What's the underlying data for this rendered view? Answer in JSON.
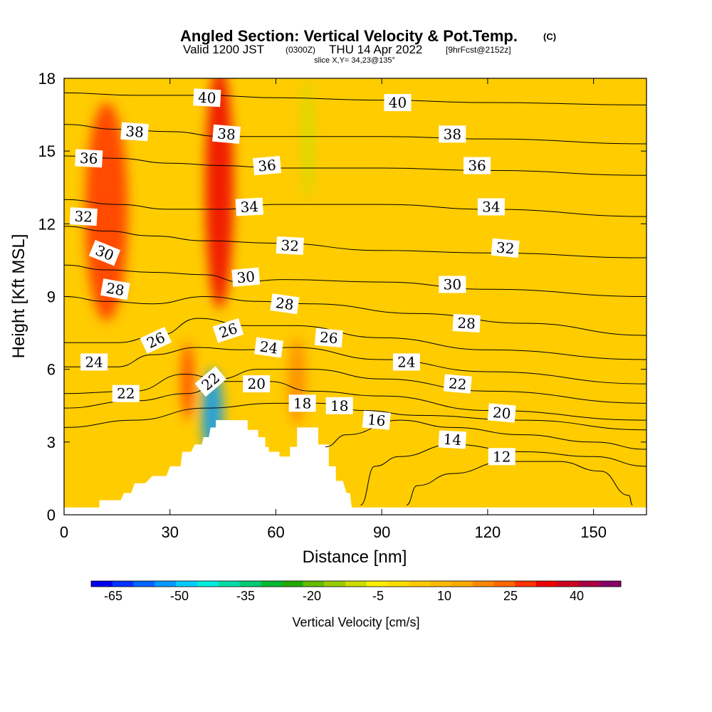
{
  "header": {
    "title": "Angled Section: Vertical Velocity & Pot.Temp.",
    "title_units": "(C)",
    "subtitle_valid": "Valid 1200 JST",
    "subtitle_utc": "(0300Z)",
    "subtitle_date": "THU 14 Apr 2022",
    "subtitle_fcst": "[9hrFcst@2152z]",
    "slice": "slice X,Y= 34,23@135°"
  },
  "chart_data": {
    "type": "heatmap",
    "xlabel": "Distance [nm]",
    "ylabel": "Height [Kft MSL]",
    "xlim": [
      0,
      165
    ],
    "ylim": [
      0,
      18
    ],
    "xticks": [
      "0",
      "30",
      "60",
      "90",
      "120",
      "150"
    ],
    "yticks": [
      "0",
      "3",
      "6",
      "9",
      "12",
      "15",
      "18"
    ],
    "colorbar": {
      "label": "Vertical Velocity [cm/s]",
      "ticks": [
        "-65",
        "-50",
        "-35",
        "-20",
        "-5",
        "10",
        "25",
        "40"
      ],
      "min": -70,
      "max": 50,
      "step": 5,
      "colors": [
        "#0000ee",
        "#0033ff",
        "#0066ff",
        "#0099ff",
        "#00ccff",
        "#00eedd",
        "#00ddaa",
        "#00cc77",
        "#00bb33",
        "#22aa00",
        "#66bb00",
        "#99cc00",
        "#ccdd00",
        "#ffee00",
        "#ffdd00",
        "#ffcc00",
        "#ffbb00",
        "#ffaa00",
        "#ff8800",
        "#ff6600",
        "#ff3300",
        "#ee0000",
        "#cc0022",
        "#aa0044",
        "#880066"
      ]
    },
    "velocity_features": [
      {
        "x": 12,
        "y": 12.5,
        "rx": 6,
        "ry": 4.5,
        "value": 30
      },
      {
        "x": 44,
        "y": 13.5,
        "rx": 4,
        "ry": 5,
        "value": 38
      },
      {
        "x": 35,
        "y": 5.5,
        "rx": 1.6,
        "ry": 1.6,
        "value": 30
      },
      {
        "x": 42,
        "y": 4.2,
        "rx": 3,
        "ry": 1.8,
        "value": -55
      },
      {
        "x": 66,
        "y": 5.5,
        "rx": 2.5,
        "ry": 1.8,
        "value": 20
      },
      {
        "x": 69,
        "y": 15.5,
        "rx": 1.5,
        "ry": 2.5,
        "value": -10
      }
    ],
    "terrain": [
      [
        0,
        0.3
      ],
      [
        10,
        0.3
      ],
      [
        10,
        0.6
      ],
      [
        16,
        0.6
      ],
      [
        17,
        0.9
      ],
      [
        19,
        0.9
      ],
      [
        20,
        1.3
      ],
      [
        23,
        1.3
      ],
      [
        25,
        1.6
      ],
      [
        29,
        1.6
      ],
      [
        30,
        2.0
      ],
      [
        33,
        2.0
      ],
      [
        33.5,
        2.6
      ],
      [
        36,
        2.6
      ],
      [
        37,
        2.9
      ],
      [
        39,
        2.9
      ],
      [
        39.5,
        3.2
      ],
      [
        41,
        3.2
      ],
      [
        41.5,
        3.6
      ],
      [
        43,
        3.6
      ],
      [
        43,
        3.9
      ],
      [
        52,
        3.9
      ],
      [
        52,
        3.5
      ],
      [
        55,
        3.5
      ],
      [
        55,
        3.2
      ],
      [
        57,
        3.2
      ],
      [
        57,
        2.8
      ],
      [
        58,
        2.8
      ],
      [
        58,
        2.6
      ],
      [
        61,
        2.6
      ],
      [
        61,
        2.4
      ],
      [
        64,
        2.4
      ],
      [
        64,
        2.8
      ],
      [
        66,
        2.8
      ],
      [
        66,
        3.6
      ],
      [
        72,
        3.6
      ],
      [
        72,
        2.9
      ],
      [
        75,
        2.9
      ],
      [
        75,
        2.0
      ],
      [
        77,
        2.0
      ],
      [
        77,
        1.4
      ],
      [
        79,
        1.4
      ],
      [
        80,
        0.9
      ],
      [
        81,
        0.9
      ],
      [
        81.5,
        0.3
      ],
      [
        165,
        0.3
      ]
    ],
    "isentropes": [
      {
        "theta": 12,
        "path": [
          [
            97,
            0.4
          ],
          [
            100,
            1.2
          ],
          [
            110,
            1.7
          ],
          [
            125,
            2.2
          ],
          [
            140,
            2.2
          ],
          [
            152,
            1.8
          ],
          [
            160,
            0.8
          ],
          [
            161,
            0.4
          ]
        ]
      },
      {
        "theta": 14,
        "path": [
          [
            84,
            0.4
          ],
          [
            88,
            2.0
          ],
          [
            95,
            2.4
          ],
          [
            110,
            2.9
          ],
          [
            130,
            2.6
          ],
          [
            150,
            2.4
          ],
          [
            165,
            2.0
          ]
        ]
      },
      {
        "theta": 16,
        "path": [
          [
            74,
            2.8
          ],
          [
            80,
            3.3
          ],
          [
            95,
            3.9
          ],
          [
            110,
            3.6
          ],
          [
            130,
            3.3
          ],
          [
            150,
            3.0
          ],
          [
            165,
            2.7
          ]
        ]
      },
      {
        "theta": 18,
        "path": [
          [
            0,
            3.6
          ],
          [
            20,
            3.9
          ],
          [
            40,
            4.4
          ],
          [
            60,
            4.6
          ],
          [
            72,
            4.6
          ],
          [
            85,
            4.3
          ],
          [
            100,
            4.1
          ],
          [
            130,
            3.9
          ],
          [
            165,
            3.5
          ]
        ]
      },
      {
        "theta": 20,
        "path": [
          [
            0,
            4.4
          ],
          [
            20,
            4.7
          ],
          [
            35,
            5.0
          ],
          [
            45,
            5.5
          ],
          [
            58,
            5.5
          ],
          [
            70,
            5.1
          ],
          [
            90,
            4.9
          ],
          [
            120,
            4.3
          ],
          [
            165,
            3.9
          ]
        ]
      },
      {
        "theta": 22,
        "path": [
          [
            0,
            5.0
          ],
          [
            20,
            5.1
          ],
          [
            34,
            5.8
          ],
          [
            44,
            5.6
          ],
          [
            55,
            6.0
          ],
          [
            70,
            6.0
          ],
          [
            90,
            5.6
          ],
          [
            120,
            5.1
          ],
          [
            165,
            4.6
          ]
        ]
      },
      {
        "theta": 24,
        "path": [
          [
            0,
            6.1
          ],
          [
            15,
            6.1
          ],
          [
            25,
            6.6
          ],
          [
            38,
            6.9
          ],
          [
            50,
            6.8
          ],
          [
            65,
            6.9
          ],
          [
            90,
            6.4
          ],
          [
            120,
            5.9
          ],
          [
            165,
            5.4
          ]
        ]
      },
      {
        "theta": 26,
        "path": [
          [
            0,
            7.1
          ],
          [
            15,
            7.1
          ],
          [
            27,
            7.4
          ],
          [
            38,
            8.1
          ],
          [
            52,
            7.8
          ],
          [
            65,
            7.8
          ],
          [
            90,
            7.3
          ],
          [
            120,
            6.8
          ],
          [
            165,
            6.4
          ]
        ]
      },
      {
        "theta": 28,
        "path": [
          [
            0,
            9.0
          ],
          [
            12,
            8.8
          ],
          [
            25,
            8.7
          ],
          [
            40,
            9.0
          ],
          [
            55,
            8.8
          ],
          [
            70,
            8.7
          ],
          [
            100,
            8.3
          ],
          [
            130,
            7.9
          ],
          [
            165,
            7.4
          ]
        ]
      },
      {
        "theta": 30,
        "path": [
          [
            0,
            10.3
          ],
          [
            12,
            10.1
          ],
          [
            25,
            10.0
          ],
          [
            40,
            9.9
          ],
          [
            50,
            9.6
          ],
          [
            62,
            9.7
          ],
          [
            90,
            9.6
          ],
          [
            120,
            9.3
          ],
          [
            165,
            9.0
          ]
        ]
      },
      {
        "theta": 32,
        "path": [
          [
            0,
            11.9
          ],
          [
            12,
            11.7
          ],
          [
            25,
            11.5
          ],
          [
            40,
            11.3
          ],
          [
            60,
            11.2
          ],
          [
            90,
            10.9
          ],
          [
            120,
            10.8
          ],
          [
            165,
            10.6
          ]
        ]
      },
      {
        "theta": 34,
        "path": [
          [
            0,
            13.0
          ],
          [
            15,
            12.8
          ],
          [
            30,
            12.6
          ],
          [
            45,
            12.6
          ],
          [
            60,
            12.8
          ],
          [
            90,
            12.8
          ],
          [
            120,
            12.6
          ],
          [
            165,
            12.3
          ]
        ]
      },
      {
        "theta": 36,
        "path": [
          [
            0,
            14.8
          ],
          [
            15,
            14.7
          ],
          [
            30,
            14.5
          ],
          [
            45,
            14.4
          ],
          [
            60,
            14.3
          ],
          [
            90,
            14.3
          ],
          [
            120,
            14.2
          ],
          [
            165,
            14.0
          ]
        ]
      },
      {
        "theta": 38,
        "path": [
          [
            0,
            16.1
          ],
          [
            15,
            15.9
          ],
          [
            30,
            15.8
          ],
          [
            45,
            15.6
          ],
          [
            60,
            15.6
          ],
          [
            90,
            15.6
          ],
          [
            120,
            15.5
          ],
          [
            165,
            15.3
          ]
        ]
      },
      {
        "theta": 40,
        "path": [
          [
            0,
            17.4
          ],
          [
            20,
            17.3
          ],
          [
            40,
            17.3
          ],
          [
            60,
            17.2
          ],
          [
            90,
            17.1
          ],
          [
            120,
            17.0
          ],
          [
            165,
            16.9
          ]
        ]
      }
    ],
    "isentrope_labels": [
      {
        "text": "40",
        "x": 40.5,
        "y": 17.2,
        "rot": 3
      },
      {
        "text": "38",
        "x": 20,
        "y": 15.8,
        "rot": 4
      },
      {
        "text": "36",
        "x": 7,
        "y": 14.7,
        "rot": 3
      },
      {
        "text": "32",
        "x": 5.5,
        "y": 12.3,
        "rot": 3
      },
      {
        "text": "30",
        "x": 11.5,
        "y": 10.8,
        "rot": 22
      },
      {
        "text": "28",
        "x": 14.5,
        "y": 9.3,
        "rot": 10
      },
      {
        "text": "24",
        "x": 8.5,
        "y": 6.3,
        "rot": 0
      },
      {
        "text": "22",
        "x": 17.5,
        "y": 5.0,
        "rot": 0
      },
      {
        "text": "26",
        "x": 26,
        "y": 7.2,
        "rot": -25
      },
      {
        "text": "38",
        "x": 46,
        "y": 15.7,
        "rot": 5
      },
      {
        "text": "36",
        "x": 57.5,
        "y": 14.4,
        "rot": -5
      },
      {
        "text": "34",
        "x": 52.5,
        "y": 12.7,
        "rot": -3
      },
      {
        "text": "32",
        "x": 64,
        "y": 11.1,
        "rot": 3
      },
      {
        "text": "30",
        "x": 51.5,
        "y": 9.8,
        "rot": -5
      },
      {
        "text": "28",
        "x": 62.5,
        "y": 8.7,
        "rot": 8
      },
      {
        "text": "26",
        "x": 46.5,
        "y": 7.6,
        "rot": -18
      },
      {
        "text": "24",
        "x": 58,
        "y": 6.9,
        "rot": 8
      },
      {
        "text": "22",
        "x": 41.5,
        "y": 5.5,
        "rot": -40
      },
      {
        "text": "20",
        "x": 54.5,
        "y": 5.4,
        "rot": 0
      },
      {
        "text": "18",
        "x": 67.5,
        "y": 4.6,
        "rot": 0
      },
      {
        "text": "26",
        "x": 75,
        "y": 7.3,
        "rot": 5
      },
      {
        "text": "18",
        "x": 78,
        "y": 4.5,
        "rot": 0
      },
      {
        "text": "16",
        "x": 88.5,
        "y": 3.9,
        "rot": 5
      },
      {
        "text": "14",
        "x": 110,
        "y": 3.1,
        "rot": 3
      },
      {
        "text": "12",
        "x": 124,
        "y": 2.4,
        "rot": 0
      },
      {
        "text": "40",
        "x": 94.5,
        "y": 17.0,
        "rot": 0
      },
      {
        "text": "38",
        "x": 110,
        "y": 15.7,
        "rot": 0
      },
      {
        "text": "36",
        "x": 117,
        "y": 14.4,
        "rot": 0
      },
      {
        "text": "34",
        "x": 121,
        "y": 12.7,
        "rot": 0
      },
      {
        "text": "32",
        "x": 125,
        "y": 11.0,
        "rot": 5
      },
      {
        "text": "30",
        "x": 110,
        "y": 9.5,
        "rot": 0
      },
      {
        "text": "28",
        "x": 114,
        "y": 7.9,
        "rot": 3
      },
      {
        "text": "24",
        "x": 97,
        "y": 6.3,
        "rot": 0
      },
      {
        "text": "22",
        "x": 111.5,
        "y": 5.4,
        "rot": 5
      },
      {
        "text": "20",
        "x": 124,
        "y": 4.2,
        "rot": 5
      }
    ]
  }
}
